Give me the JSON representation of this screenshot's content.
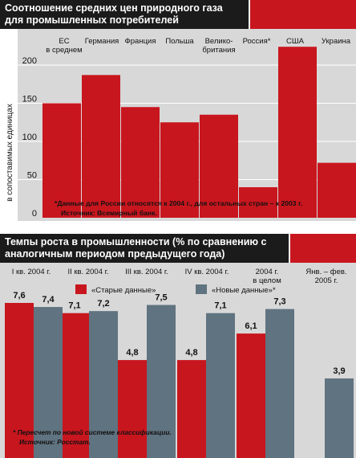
{
  "chart_data": [
    {
      "type": "bar",
      "title": "Соотношение средних цен природного газа для промышленных потребителей",
      "categories": [
        "ЕС в среднем",
        "Германия",
        "Франция",
        "Польша",
        "Велико- британия",
        "Россия*",
        "США",
        "Украина"
      ],
      "category_lines": [
        [
          "ЕС",
          "в среднем"
        ],
        [
          "Германия"
        ],
        [
          "Франция"
        ],
        [
          "Польша"
        ],
        [
          "Велико-",
          "британия"
        ],
        [
          "Россия*"
        ],
        [
          "США"
        ],
        [
          "Украина"
        ]
      ],
      "values": [
        150,
        187,
        145,
        125,
        135,
        40,
        224,
        72
      ],
      "ylabel": "в сопоставимых единицах",
      "yticks": [
        0,
        50,
        100,
        150,
        200
      ],
      "ylim": [
        0,
        240
      ],
      "grid": true,
      "colors": {
        "bar": "#c8161e",
        "background": "#d8d8d8"
      },
      "footnote": "*Данные для России относятся к 2004 г., для остальных стран – к 2003 г.",
      "source": "Источник: Всемирный банк."
    },
    {
      "type": "bar",
      "title": "Темпы роста в промышленности (% по сравнению с аналогичным периодом предыдущего года)",
      "categories": [
        "I кв. 2004 г.",
        "II кв. 2004 г.",
        "III кв. 2004 г.",
        "IV кв. 2004 г.",
        "2004 г. в целом",
        "Янв. – фев. 2005 г."
      ],
      "category_lines": [
        [
          "I кв. 2004 г."
        ],
        [
          "II кв. 2004 г."
        ],
        [
          "III кв. 2004 г."
        ],
        [
          "IV кв. 2004 г."
        ],
        [
          "2004 г.",
          "в целом"
        ],
        [
          "Янв. – фев.",
          "2005 г."
        ]
      ],
      "series": [
        {
          "name": "«Старые данные»",
          "values": [
            7.6,
            7.1,
            4.8,
            4.8,
            6.1,
            null
          ],
          "color": "#c8161e"
        },
        {
          "name": "«Новые данные»*",
          "values": [
            7.4,
            7.2,
            7.5,
            7.1,
            7.3,
            3.9
          ],
          "color": "#607380"
        }
      ],
      "value_labels": [
        [
          "7,6",
          "7,1",
          "4,8",
          "4,8",
          "6,1",
          ""
        ],
        [
          "7,4",
          "7,2",
          "7,5",
          "7,1",
          "7,3",
          "3,9"
        ]
      ],
      "ylim": [
        0,
        8.5
      ],
      "colors": {
        "background": "#d8d8d8"
      },
      "footnote": "* Пересчет по новой системе классификации.",
      "source": "Источник: Росстат."
    }
  ]
}
